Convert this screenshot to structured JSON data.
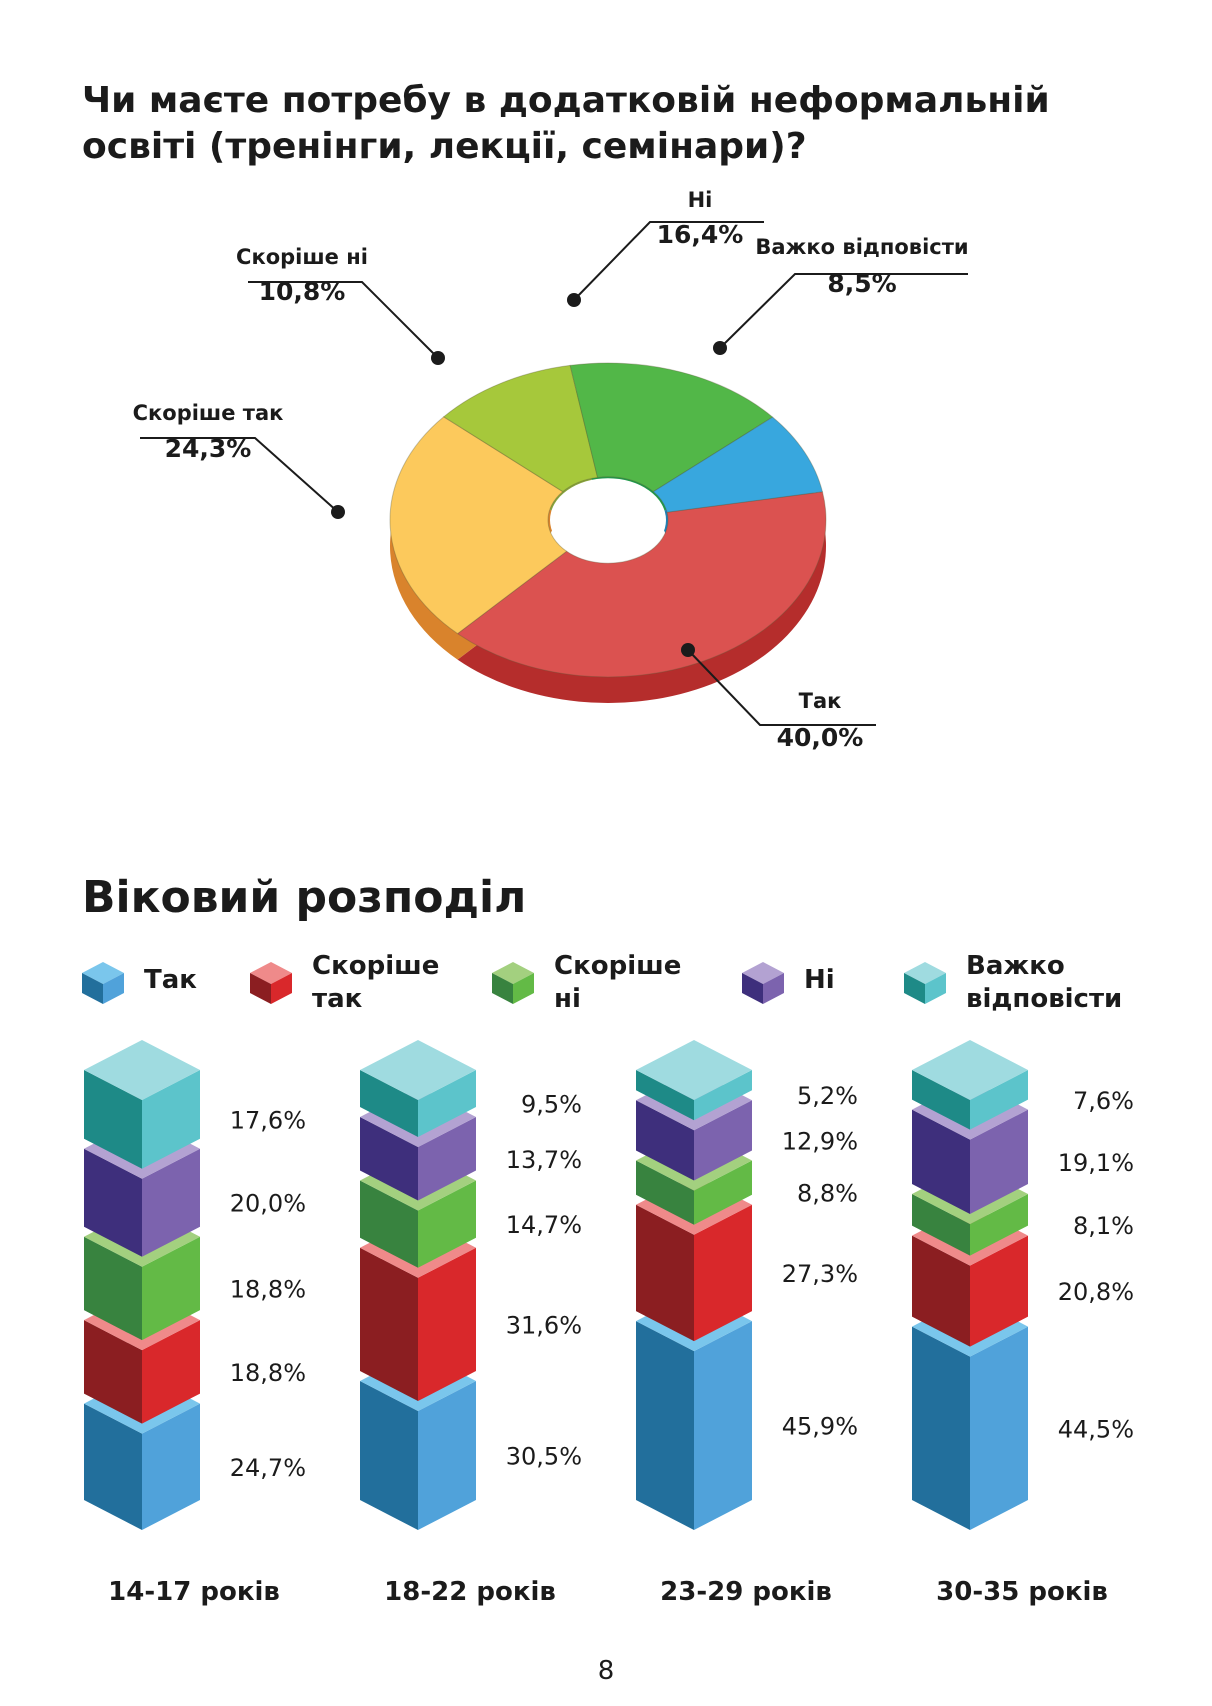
{
  "page": {
    "title": "Чи маєте потребу в додатковій неформальній освіті (тренінги, лекції, семінари)?",
    "section_title": "Віковий розподіл",
    "page_number": "8"
  },
  "chart_data": [
    {
      "type": "pie",
      "title": "Чи маєте потребу в додатковій неформальній освіті (тренінги, лекції, семінари)?",
      "slices": [
        {
          "label": "Так",
          "value": 40.0,
          "value_label": "40,0%",
          "color": "#db5250",
          "side": "#b52d2c"
        },
        {
          "label": "Скоріше так",
          "value": 24.3,
          "value_label": "24,3%",
          "color": "#fcc95c",
          "side": "#d9832c"
        },
        {
          "label": "Скоріше ні",
          "value": 10.8,
          "value_label": "10,8%",
          "color": "#a6c83b",
          "side": "#87a33b"
        },
        {
          "label": "Ні",
          "value": 16.4,
          "value_label": "16,4%",
          "color": "#52b748",
          "side": "#1f9a4a"
        },
        {
          "label": "Важко відповісти",
          "value": 8.5,
          "value_label": "8,5%",
          "color": "#38a7de",
          "side": "#1f7fb5"
        }
      ]
    },
    {
      "type": "bar",
      "stacked": true,
      "title": "Віковий розподіл",
      "categories": [
        "14-17 років",
        "18-22 років",
        "23-29 років",
        "30-35 років"
      ],
      "series": [
        {
          "name": "Так",
          "values": [
            24.7,
            30.5,
            45.9,
            44.5
          ],
          "labels": [
            "24,7%",
            "30,5%",
            "45,9%",
            "44,5%"
          ],
          "colors": {
            "top": "#7ac6ec",
            "left": "#226f9c",
            "right": "#50a2da"
          }
        },
        {
          "name": "Скоріше так",
          "values": [
            18.8,
            31.6,
            27.3,
            20.8
          ],
          "labels": [
            "18,8%",
            "31,6%",
            "27,3%",
            "20,8%"
          ],
          "colors": {
            "top": "#ef8a8a",
            "left": "#8b1e21",
            "right": "#d9282b"
          }
        },
        {
          "name": "Скоріше ні",
          "values": [
            18.8,
            14.7,
            8.8,
            8.1
          ],
          "labels": [
            "18,8%",
            "14,7%",
            "8,8%",
            "8,1%"
          ],
          "colors": {
            "top": "#a3d07f",
            "left": "#38833f",
            "right": "#63ba46"
          }
        },
        {
          "name": "Ні",
          "values": [
            20.0,
            13.7,
            12.9,
            19.1
          ],
          "labels": [
            "20,0%",
            "13,7%",
            "12,9%",
            "19,1%"
          ],
          "colors": {
            "top": "#b3a2d2",
            "left": "#3e2f7c",
            "right": "#7c63ae"
          }
        },
        {
          "name": "Важко відповісти",
          "values": [
            17.6,
            9.5,
            5.2,
            7.6
          ],
          "labels": [
            "17,6%",
            "9,5%",
            "5,2%",
            "7,6%"
          ],
          "colors": {
            "top": "#9fdbe0",
            "left": "#1e8a87",
            "right": "#5cc4cb"
          }
        }
      ]
    }
  ],
  "legend": [
    {
      "label": "Так",
      "icon": "cube-icon"
    },
    {
      "label": "Скоріше так",
      "icon": "cube-icon"
    },
    {
      "label": "Скоріше ні",
      "icon": "cube-icon"
    },
    {
      "label": "Ні",
      "icon": "cube-icon"
    },
    {
      "label": "Важко відповісти",
      "icon": "cube-icon"
    }
  ]
}
